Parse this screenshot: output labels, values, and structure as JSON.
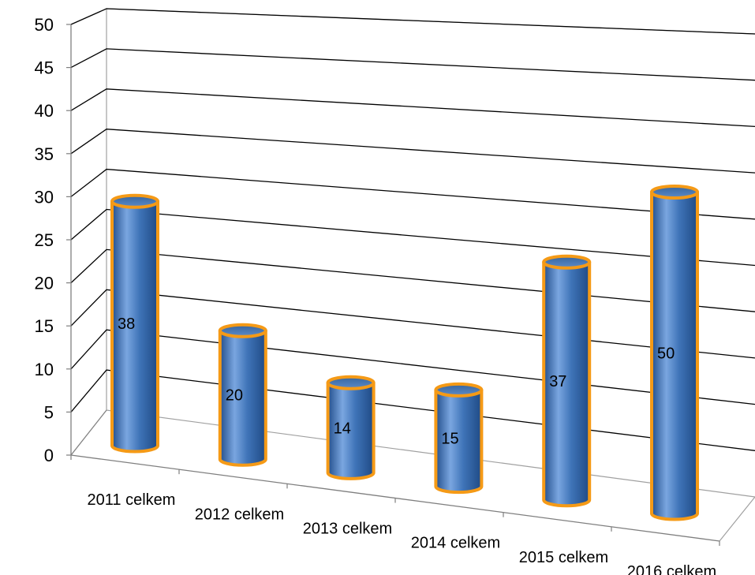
{
  "chart_data": {
    "type": "bar",
    "style": "3d-cylinder",
    "categories": [
      "2011 celkem",
      "2012 celkem",
      "2013 celkem",
      "2014 celkem",
      "2015 celkem",
      "2016 celkem"
    ],
    "values": [
      38,
      20,
      14,
      15,
      37,
      50
    ],
    "data_labels": [
      "38",
      "20",
      "14",
      "15",
      "37",
      "50"
    ],
    "ylim": [
      0,
      50
    ],
    "yticks": [
      "0",
      "5",
      "10",
      "15",
      "20",
      "25",
      "30",
      "35",
      "40",
      "45",
      "50"
    ],
    "grid": true,
    "legend": "none",
    "colors": {
      "bar_fill": "#3f74b8",
      "bar_highlight": "#7aa6e0",
      "bar_shadow": "#234f8c",
      "bar_outline": "#f59a16",
      "top_fill": "#4a78b4",
      "gridline": "#000000"
    }
  }
}
